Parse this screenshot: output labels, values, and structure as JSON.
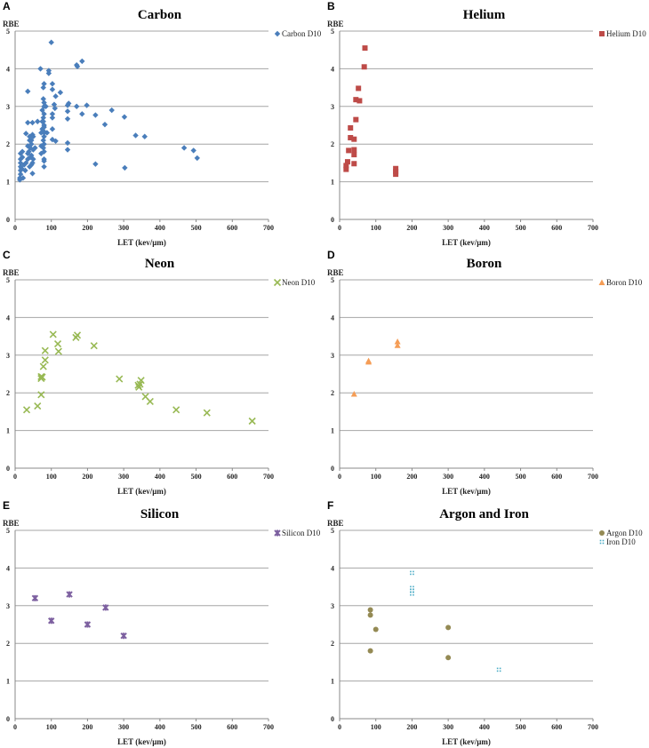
{
  "chart_data": [
    {
      "panel": "A",
      "type": "scatter",
      "title": "Carbon",
      "xlabel": "LET (kev/µm)",
      "ylabel": "RBE",
      "xlim": [
        0,
        700
      ],
      "ylim": [
        0,
        5
      ],
      "xticks": [
        0,
        100,
        200,
        300,
        400,
        500,
        600,
        700
      ],
      "yticks": [
        0,
        1,
        2,
        3,
        4,
        5
      ],
      "grid": "horizontal",
      "legend": "top-right",
      "series": [
        {
          "name": "Carbon D10",
          "marker": "diamond",
          "color": "#4a7ebb",
          "points": [
            [
              100,
              4.7
            ],
            [
              70,
              4.0
            ],
            [
              93,
              3.95
            ],
            [
              93,
              3.88
            ],
            [
              170,
              4.1
            ],
            [
              172,
              4.06
            ],
            [
              185,
              4.2
            ],
            [
              35,
              3.4
            ],
            [
              78,
              3.5
            ],
            [
              80,
              3.6
            ],
            [
              103,
              3.6
            ],
            [
              103,
              3.45
            ],
            [
              125,
              3.37
            ],
            [
              112,
              3.27
            ],
            [
              78,
              3.2
            ],
            [
              80,
              3.1
            ],
            [
              148,
              3.08
            ],
            [
              145,
              3.03
            ],
            [
              170,
              3.0
            ],
            [
              198,
              3.03
            ],
            [
              267,
              2.9
            ],
            [
              302,
              2.72
            ],
            [
              185,
              2.8
            ],
            [
              222,
              2.77
            ],
            [
              145,
              2.87
            ],
            [
              145,
              2.67
            ],
            [
              248,
              2.52
            ],
            [
              333,
              2.23
            ],
            [
              358,
              2.2
            ],
            [
              467,
              1.9
            ],
            [
              493,
              1.83
            ],
            [
              503,
              1.63
            ],
            [
              222,
              1.47
            ],
            [
              303,
              1.37
            ],
            [
              145,
              2.03
            ],
            [
              145,
              1.85
            ],
            [
              112,
              2.08
            ],
            [
              103,
              2.12
            ],
            [
              108,
              3.05
            ],
            [
              110,
              2.95
            ],
            [
              103,
              2.8
            ],
            [
              103,
              2.4
            ],
            [
              103,
              2.7
            ],
            [
              88,
              2.3
            ],
            [
              85,
              3.0
            ],
            [
              80,
              1.4
            ],
            [
              80,
              1.6
            ],
            [
              80,
              1.55
            ],
            [
              80,
              1.8
            ],
            [
              80,
              2.0
            ],
            [
              80,
              2.2
            ],
            [
              80,
              2.5
            ],
            [
              80,
              2.8
            ],
            [
              75,
              2.4
            ],
            [
              75,
              2.6
            ],
            [
              72,
              1.95
            ],
            [
              72,
              2.3
            ],
            [
              75,
              2.9
            ],
            [
              72,
              1.75
            ],
            [
              62,
              2.6
            ],
            [
              48,
              2.57
            ],
            [
              35,
              2.57
            ],
            [
              30,
              2.28
            ],
            [
              48,
              2.25
            ],
            [
              50,
              2.2
            ],
            [
              45,
              2.0
            ],
            [
              40,
              2.1
            ],
            [
              42,
              1.9
            ],
            [
              38,
              1.8
            ],
            [
              45,
              1.7
            ],
            [
              50,
              1.6
            ],
            [
              48,
              1.5
            ],
            [
              40,
              1.4
            ],
            [
              48,
              1.22
            ],
            [
              35,
              1.6
            ],
            [
              35,
              1.75
            ],
            [
              30,
              1.5
            ],
            [
              28,
              1.3
            ],
            [
              22,
              1.1
            ],
            [
              20,
              1.8
            ],
            [
              15,
              1.75
            ],
            [
              15,
              1.6
            ],
            [
              15,
              1.5
            ],
            [
              15,
              1.4
            ],
            [
              15,
              1.3
            ],
            [
              15,
              1.2
            ],
            [
              13,
              1.05
            ],
            [
              13,
              1.1
            ],
            [
              18,
              1.35
            ],
            [
              20,
              1.65
            ],
            [
              25,
              1.45
            ],
            [
              40,
              2.2
            ],
            [
              45,
              2.1
            ],
            [
              35,
              1.95
            ],
            [
              50,
              1.85
            ],
            [
              55,
              1.9
            ],
            [
              42,
              1.65
            ],
            [
              45,
              1.45
            ],
            [
              78,
              2.1
            ],
            [
              78,
              2.7
            ],
            [
              78,
              2.35
            ],
            [
              80,
              3.0
            ],
            [
              78,
              2.6
            ],
            [
              80,
              2.45
            ],
            [
              78,
              1.9
            ],
            [
              80,
              2.3
            ]
          ]
        }
      ]
    },
    {
      "panel": "B",
      "type": "scatter",
      "title": "Helium",
      "xlabel": "LET (kev/µm)",
      "ylabel": "RBE",
      "xlim": [
        0,
        700
      ],
      "ylim": [
        0,
        5
      ],
      "xticks": [
        0,
        100,
        200,
        300,
        400,
        500,
        600,
        700
      ],
      "yticks": [
        0,
        1,
        2,
        3,
        4,
        5
      ],
      "grid": "horizontal",
      "legend": "top-right",
      "series": [
        {
          "name": "Helium D10",
          "marker": "square",
          "color": "#be4b48",
          "points": [
            [
              70,
              4.55
            ],
            [
              68,
              4.05
            ],
            [
              52,
              3.48
            ],
            [
              45,
              3.18
            ],
            [
              55,
              3.15
            ],
            [
              45,
              2.65
            ],
            [
              30,
              2.43
            ],
            [
              30,
              2.17
            ],
            [
              40,
              2.13
            ],
            [
              25,
              1.83
            ],
            [
              40,
              1.85
            ],
            [
              40,
              1.72
            ],
            [
              22,
              1.53
            ],
            [
              40,
              1.48
            ],
            [
              18,
              1.43
            ],
            [
              18,
              1.33
            ],
            [
              155,
              1.35
            ],
            [
              155,
              1.27
            ],
            [
              155,
              1.2
            ]
          ]
        }
      ]
    },
    {
      "panel": "C",
      "type": "scatter",
      "title": "Neon",
      "xlabel": "LET (kev/µm)",
      "ylabel": "RBE",
      "xlim": [
        0,
        700
      ],
      "ylim": [
        0,
        5
      ],
      "xticks": [
        0,
        100,
        200,
        300,
        400,
        500,
        600,
        700
      ],
      "yticks": [
        0,
        1,
        2,
        3,
        4,
        5
      ],
      "grid": "horizontal",
      "legend": "top-right",
      "series": [
        {
          "name": "Neon D10",
          "marker": "x",
          "color": "#98b954",
          "points": [
            [
              32,
              1.55
            ],
            [
              62,
              1.65
            ],
            [
              72,
              1.95
            ],
            [
              72,
              2.38
            ],
            [
              72,
              2.43
            ],
            [
              75,
              2.42
            ],
            [
              78,
              2.7
            ],
            [
              83,
              2.87
            ],
            [
              83,
              3.12
            ],
            [
              105,
              3.55
            ],
            [
              118,
              3.3
            ],
            [
              120,
              3.1
            ],
            [
              168,
              3.47
            ],
            [
              172,
              3.53
            ],
            [
              218,
              3.25
            ],
            [
              288,
              2.37
            ],
            [
              340,
              2.2
            ],
            [
              342,
              2.15
            ],
            [
              345,
              2.23
            ],
            [
              348,
              2.33
            ],
            [
              360,
              1.9
            ],
            [
              373,
              1.77
            ],
            [
              445,
              1.55
            ],
            [
              530,
              1.47
            ],
            [
              655,
              1.25
            ]
          ]
        }
      ]
    },
    {
      "panel": "D",
      "type": "scatter",
      "title": "Boron",
      "xlabel": "LET (kev/µm)",
      "ylabel": "RBE",
      "xlim": [
        0,
        700
      ],
      "ylim": [
        0,
        5
      ],
      "xticks": [
        0,
        100,
        200,
        300,
        400,
        500,
        600,
        700
      ],
      "yticks": [
        0,
        1,
        2,
        3,
        4,
        5
      ],
      "grid": "horizontal",
      "legend": "top-right",
      "series": [
        {
          "name": "Boron D10",
          "marker": "triangle",
          "color": "#f59d56",
          "points": [
            [
              40,
              1.97
            ],
            [
              80,
              2.82
            ],
            [
              80,
              2.85
            ],
            [
              160,
              3.36
            ],
            [
              160,
              3.26
            ]
          ]
        }
      ]
    },
    {
      "panel": "E",
      "type": "scatter",
      "title": "Silicon",
      "xlabel": "LET (kev/µm)",
      "ylabel": "RBE",
      "xlim": [
        0,
        700
      ],
      "ylim": [
        0,
        5
      ],
      "xticks": [
        0,
        100,
        200,
        300,
        400,
        500,
        600,
        700
      ],
      "yticks": [
        0,
        1,
        2,
        3,
        4,
        5
      ],
      "grid": "horizontal",
      "legend": "top-right",
      "series": [
        {
          "name": "Silicon D10",
          "marker": "star",
          "color": "#7d60a0",
          "points": [
            [
              55,
              3.2
            ],
            [
              100,
              2.6
            ],
            [
              150,
              3.3
            ],
            [
              200,
              2.5
            ],
            [
              250,
              2.95
            ],
            [
              300,
              2.2
            ]
          ]
        }
      ]
    },
    {
      "panel": "F",
      "type": "scatter",
      "title": "Argon and Iron",
      "xlabel": "LET (kev/µm)",
      "ylabel": "RBE",
      "xlim": [
        0,
        700
      ],
      "ylim": [
        0,
        5
      ],
      "xticks": [
        0,
        100,
        200,
        300,
        400,
        500,
        600,
        700
      ],
      "yticks": [
        0,
        1,
        2,
        3,
        4,
        5
      ],
      "grid": "horizontal",
      "legend": "top-right",
      "series": [
        {
          "name": "Argon D10",
          "marker": "circle",
          "color": "#948a54",
          "points": [
            [
              85,
              2.89
            ],
            [
              85,
              2.75
            ],
            [
              100,
              2.37
            ],
            [
              85,
              1.8
            ],
            [
              300,
              2.42
            ],
            [
              300,
              1.62
            ]
          ]
        },
        {
          "name": "Iron D10",
          "marker": "dots",
          "color": "#4bacc6",
          "points": [
            [
              200,
              3.87
            ],
            [
              200,
              3.47
            ],
            [
              200,
              3.4
            ],
            [
              200,
              3.32
            ],
            [
              440,
              1.3
            ]
          ]
        }
      ]
    }
  ]
}
